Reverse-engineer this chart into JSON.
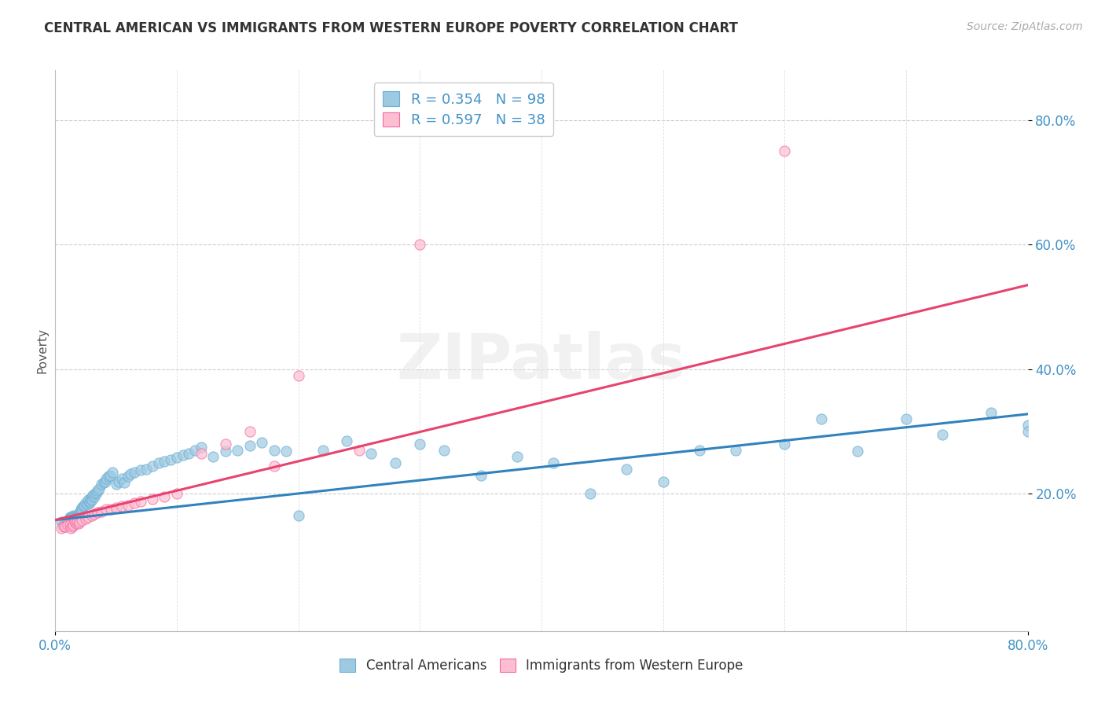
{
  "title": "CENTRAL AMERICAN VS IMMIGRANTS FROM WESTERN EUROPE POVERTY CORRELATION CHART",
  "source": "Source: ZipAtlas.com",
  "ylabel": "Poverty",
  "xlim": [
    0.0,
    0.8
  ],
  "ylim": [
    -0.02,
    0.88
  ],
  "xtick_labels_bottom": [
    "0.0%",
    "80.0%"
  ],
  "xtick_vals_bottom": [
    0.0,
    0.8
  ],
  "ytick_labels": [
    "20.0%",
    "40.0%",
    "60.0%",
    "80.0%"
  ],
  "ytick_vals": [
    0.2,
    0.4,
    0.6,
    0.8
  ],
  "grid_yticks": [
    0.2,
    0.4,
    0.6,
    0.8
  ],
  "color_blue": "#9ecae1",
  "color_pink": "#fcbfd2",
  "color_blue_edge": "#6baed6",
  "color_pink_edge": "#f768a1",
  "color_blue_line": "#3182bd",
  "color_pink_line": "#e8436e",
  "color_axis_tick": "#4292c6",
  "background": "#ffffff",
  "watermark": "ZIPatlas",
  "R1": 0.354,
  "R2": 0.597,
  "N1": 98,
  "N2": 38,
  "blue_trend_y_start": 0.158,
  "blue_trend_y_end": 0.328,
  "pink_trend_y_start": 0.158,
  "pink_trend_y_end": 0.535,
  "blue_x": [
    0.005,
    0.007,
    0.008,
    0.01,
    0.01,
    0.012,
    0.012,
    0.013,
    0.013,
    0.014,
    0.015,
    0.015,
    0.016,
    0.016,
    0.017,
    0.017,
    0.018,
    0.018,
    0.019,
    0.019,
    0.02,
    0.02,
    0.02,
    0.02,
    0.021,
    0.022,
    0.022,
    0.023,
    0.024,
    0.025,
    0.026,
    0.027,
    0.028,
    0.028,
    0.029,
    0.03,
    0.03,
    0.031,
    0.032,
    0.033,
    0.034,
    0.035,
    0.036,
    0.038,
    0.04,
    0.041,
    0.042,
    0.044,
    0.045,
    0.047,
    0.05,
    0.052,
    0.055,
    0.057,
    0.06,
    0.062,
    0.065,
    0.07,
    0.075,
    0.08,
    0.085,
    0.09,
    0.095,
    0.1,
    0.105,
    0.11,
    0.115,
    0.12,
    0.13,
    0.14,
    0.15,
    0.16,
    0.17,
    0.18,
    0.19,
    0.2,
    0.22,
    0.24,
    0.26,
    0.28,
    0.3,
    0.32,
    0.35,
    0.38,
    0.41,
    0.44,
    0.47,
    0.5,
    0.53,
    0.56,
    0.6,
    0.63,
    0.66,
    0.7,
    0.73,
    0.77,
    0.8,
    0.8
  ],
  "blue_y": [
    0.155,
    0.15,
    0.148,
    0.158,
    0.155,
    0.162,
    0.158,
    0.163,
    0.16,
    0.163,
    0.165,
    0.162,
    0.164,
    0.162,
    0.163,
    0.16,
    0.165,
    0.162,
    0.165,
    0.163,
    0.17,
    0.168,
    0.165,
    0.162,
    0.175,
    0.178,
    0.172,
    0.18,
    0.182,
    0.185,
    0.183,
    0.19,
    0.185,
    0.188,
    0.192,
    0.195,
    0.19,
    0.198,
    0.196,
    0.2,
    0.202,
    0.205,
    0.208,
    0.215,
    0.218,
    0.22,
    0.225,
    0.228,
    0.23,
    0.235,
    0.215,
    0.22,
    0.225,
    0.218,
    0.228,
    0.232,
    0.235,
    0.238,
    0.24,
    0.245,
    0.25,
    0.252,
    0.255,
    0.258,
    0.262,
    0.265,
    0.27,
    0.275,
    0.26,
    0.268,
    0.27,
    0.278,
    0.282,
    0.27,
    0.268,
    0.165,
    0.27,
    0.285,
    0.265,
    0.25,
    0.28,
    0.27,
    0.23,
    0.26,
    0.25,
    0.2,
    0.24,
    0.22,
    0.27,
    0.27,
    0.28,
    0.32,
    0.268,
    0.32,
    0.295,
    0.33,
    0.31,
    0.3
  ],
  "pink_x": [
    0.005,
    0.007,
    0.008,
    0.01,
    0.012,
    0.013,
    0.014,
    0.015,
    0.016,
    0.017,
    0.018,
    0.019,
    0.02,
    0.022,
    0.025,
    0.027,
    0.03,
    0.032,
    0.035,
    0.038,
    0.042,
    0.046,
    0.05,
    0.055,
    0.06,
    0.065,
    0.07,
    0.08,
    0.09,
    0.1,
    0.12,
    0.14,
    0.16,
    0.18,
    0.2,
    0.25,
    0.3,
    0.6
  ],
  "pink_y": [
    0.145,
    0.148,
    0.148,
    0.15,
    0.15,
    0.145,
    0.148,
    0.15,
    0.155,
    0.152,
    0.155,
    0.152,
    0.155,
    0.158,
    0.16,
    0.162,
    0.165,
    0.168,
    0.17,
    0.172,
    0.175,
    0.175,
    0.178,
    0.18,
    0.182,
    0.185,
    0.188,
    0.192,
    0.196,
    0.2,
    0.265,
    0.28,
    0.3,
    0.245,
    0.39,
    0.27,
    0.6,
    0.75
  ]
}
